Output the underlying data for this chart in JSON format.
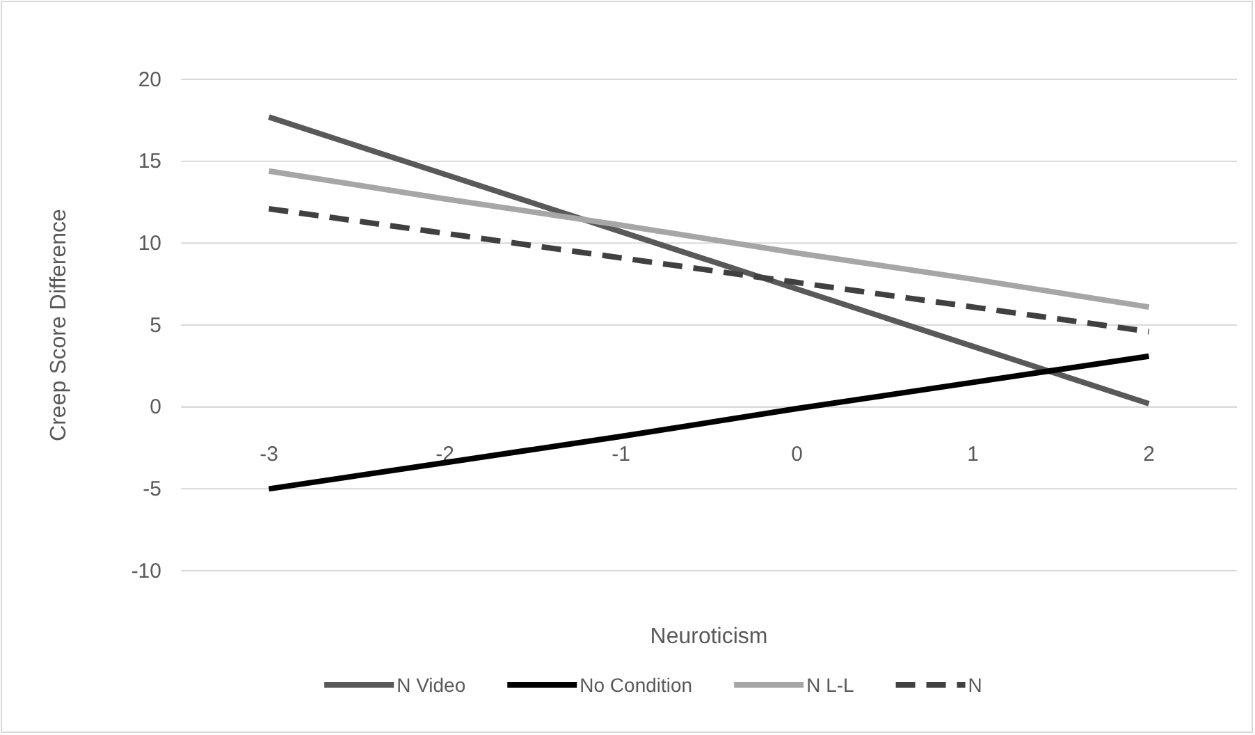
{
  "chart_data": {
    "type": "line",
    "xlabel": "Neuroticism",
    "ylabel": "Creep Score Difference",
    "categories": [
      "-3",
      "-2",
      "-1",
      "0",
      "1",
      "2"
    ],
    "series": [
      {
        "name": "N Video",
        "color": "#595959",
        "values": [
          17.7,
          14.2,
          10.7,
          7.2,
          3.7,
          0.2
        ]
      },
      {
        "name": "No Condition",
        "color": "#000000",
        "values": [
          -5.0,
          -3.4,
          -1.8,
          -0.1,
          1.5,
          3.1
        ]
      },
      {
        "name": "N L-L",
        "color": "#a6a6a6",
        "values": [
          14.4,
          12.7,
          11.1,
          9.4,
          7.8,
          6.1
        ]
      },
      {
        "name": "N",
        "color": "#404040",
        "values": [
          12.1,
          10.6,
          9.1,
          7.6,
          6.1,
          4.6
        ],
        "line_style": "dashed"
      }
    ],
    "ylim": [
      -10,
      20
    ],
    "yticks": [
      -10,
      -5,
      0,
      5,
      10,
      15,
      20
    ],
    "grid": "y",
    "legend": "bottom",
    "marker": "none"
  }
}
